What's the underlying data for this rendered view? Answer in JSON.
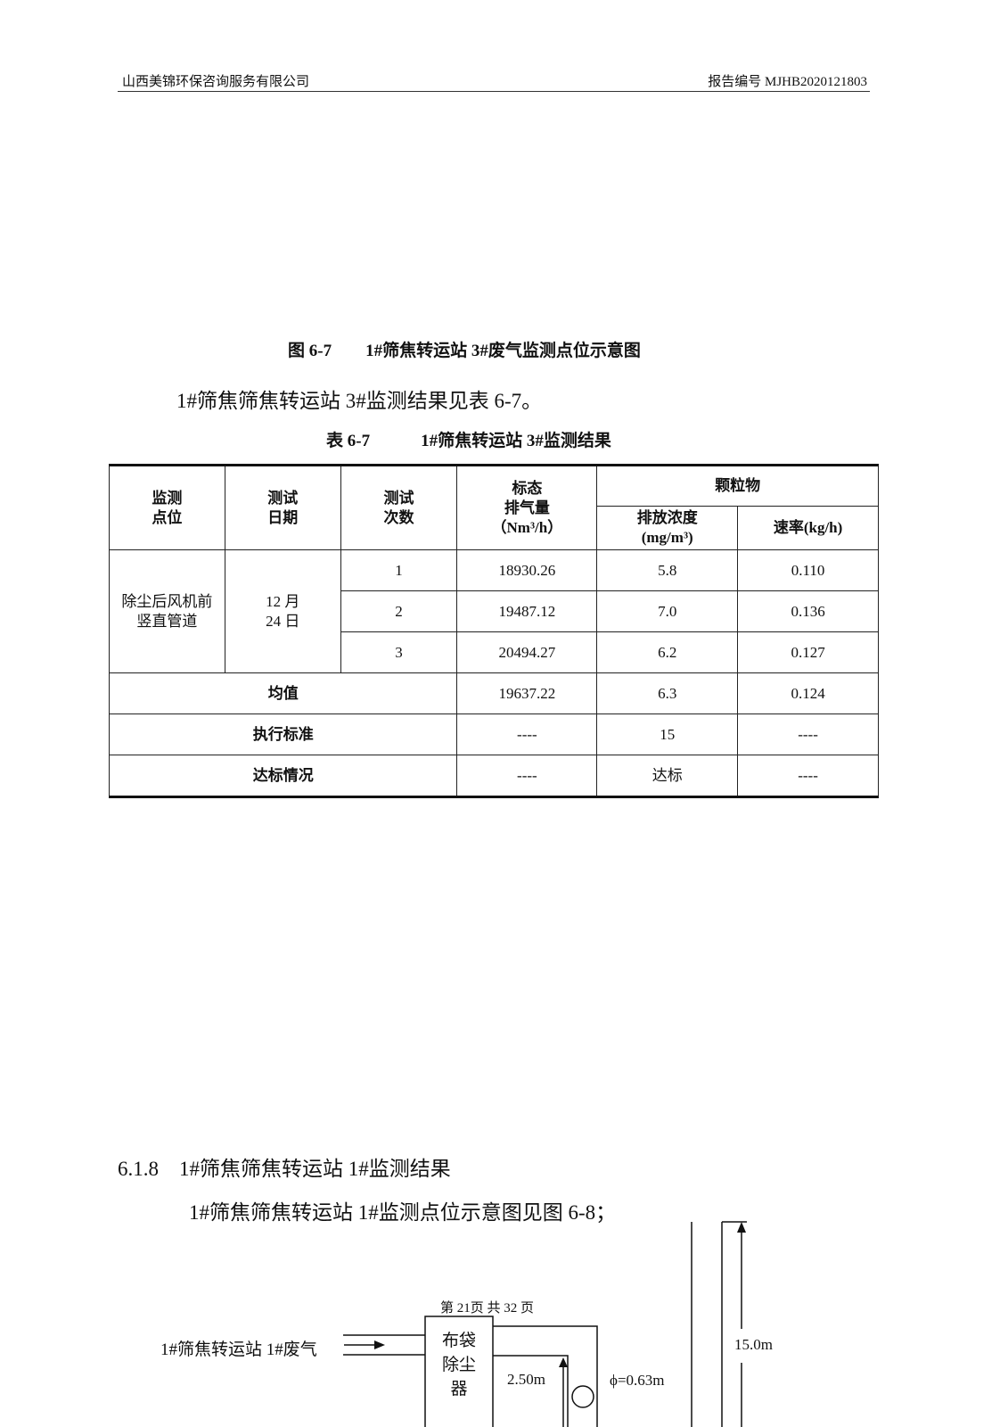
{
  "header": {
    "company": "山西美锦环保咨询服务有限公司",
    "report_no": "报告编号 MJHB2020121803"
  },
  "figure_caption": "图 6-7　　1#筛焦转运站 3#废气监测点位示意图",
  "intro": "1#筛焦筛焦转运站 3#监测结果见表 6-7。",
  "table_caption": "表 6-7　　　1#筛焦转运站 3#监测结果",
  "table": {
    "headers": {
      "point": [
        "监测",
        "点位"
      ],
      "date": [
        "测试",
        "日期"
      ],
      "count": [
        "测试",
        "次数"
      ],
      "flow": [
        "标态",
        "排气量",
        "（Nm³/h）"
      ],
      "pm": "颗粒物",
      "conc": [
        "排放浓度",
        "(mg/m³)"
      ],
      "rate": "速率(kg/h)"
    },
    "point": [
      "除尘后风机前",
      "竖直管道"
    ],
    "date": [
      "12 月",
      "24 日"
    ],
    "rows": [
      [
        "1",
        "18930.26",
        "5.8",
        "0.110"
      ],
      [
        "2",
        "19487.12",
        "7.0",
        "0.136"
      ],
      [
        "3",
        "20494.27",
        "6.2",
        "0.127"
      ]
    ],
    "mean": {
      "label": "均值",
      "flow": "19637.22",
      "conc": "6.3",
      "rate": "0.124"
    },
    "standard": {
      "label": "执行标准",
      "flow": "----",
      "conc": "15",
      "rate": "----"
    },
    "compliance": {
      "label": "达标情况",
      "flow": "----",
      "conc": "达标",
      "rate": "----"
    }
  },
  "section": {
    "number": "6.1.8",
    "title": "1#筛焦筛焦转运站 1#监测结果"
  },
  "section_text": "1#筛焦筛焦转运站 1#监测点位示意图见图 6-8；",
  "diagram": {
    "inlet": "1#筛焦转运站 1#废气",
    "box": [
      "布袋",
      "除尘",
      "器"
    ],
    "height_25": "2.50m",
    "diameter": "ϕ=0.63m",
    "height_15": "15.0m"
  },
  "footer": "第 21页  共 32 页"
}
